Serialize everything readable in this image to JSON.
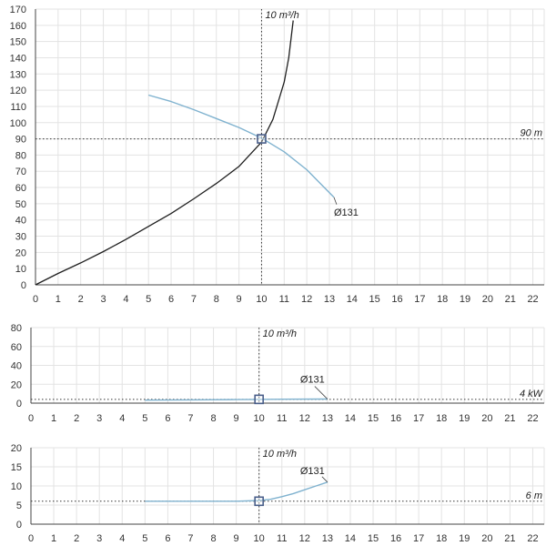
{
  "colors": {
    "system_curve": "#1f1f1f",
    "pump_curve": "#7fb2cf",
    "grid": "#e3e3e3",
    "axis": "#444444",
    "marker": "#4a5f8a",
    "guide": "#333333"
  },
  "chart_data": [
    {
      "type": "line",
      "x_ticks": [
        0,
        1,
        2,
        3,
        4,
        5,
        6,
        7,
        8,
        9,
        10,
        11,
        12,
        13,
        14,
        15,
        16,
        17,
        18,
        19,
        20,
        21,
        22
      ],
      "y_ticks": [
        0,
        10,
        20,
        30,
        40,
        50,
        60,
        70,
        80,
        90,
        100,
        110,
        120,
        130,
        140,
        150,
        160,
        170
      ],
      "xlim": [
        0,
        22.5
      ],
      "ylim": [
        0,
        170
      ],
      "grid": true,
      "series": [
        {
          "name": "",
          "color_key": "system_curve",
          "x": [
            0,
            1,
            2,
            3,
            4,
            5,
            6,
            7,
            8,
            9,
            10,
            10.5,
            11,
            11.2,
            11.4
          ],
          "y": [
            0,
            7,
            13.5,
            20.5,
            28,
            36,
            44,
            53,
            62.5,
            73,
            88,
            102,
            125,
            140,
            163
          ]
        },
        {
          "name": "Ø131",
          "color_key": "pump_curve",
          "x": [
            5,
            6,
            7,
            8,
            9,
            10,
            11,
            12,
            13.2
          ],
          "y": [
            117,
            113,
            108,
            102.5,
            97,
            90.5,
            82,
            71,
            54
          ]
        }
      ],
      "series_label": {
        "text": "Ø131",
        "x": 13.2,
        "y": 54
      },
      "vertical_guide": {
        "x": 10,
        "label": "10 m³/h"
      },
      "horizontal_guide": {
        "y": 90,
        "label": "90 m"
      },
      "operating_point": {
        "x": 10,
        "y": 90
      }
    },
    {
      "type": "line",
      "x_ticks": [
        0,
        1,
        2,
        3,
        4,
        5,
        6,
        7,
        8,
        9,
        10,
        11,
        12,
        13,
        14,
        15,
        16,
        17,
        18,
        19,
        20,
        21,
        22
      ],
      "y_ticks": [
        0,
        20,
        40,
        60,
        80
      ],
      "xlim": [
        0,
        22.5
      ],
      "ylim": [
        0,
        80
      ],
      "grid": true,
      "series": [
        {
          "name": "Ø131",
          "color_key": "pump_curve",
          "x": [
            5,
            7,
            9,
            10,
            11,
            13
          ],
          "y": [
            3.2,
            3.5,
            3.8,
            4,
            4.1,
            4.3
          ]
        }
      ],
      "series_label": {
        "text": "Ø131",
        "x": 13,
        "y": 4.3
      },
      "vertical_guide": {
        "x": 10,
        "label": "10 m³/h"
      },
      "horizontal_guide": {
        "y": 4,
        "label": "4 kW"
      },
      "operating_point": {
        "x": 10,
        "y": 4
      }
    },
    {
      "type": "line",
      "x_ticks": [
        0,
        1,
        2,
        3,
        4,
        5,
        6,
        7,
        8,
        9,
        10,
        11,
        12,
        13,
        14,
        15,
        16,
        17,
        18,
        19,
        20,
        21,
        22
      ],
      "y_ticks": [
        0,
        5,
        10,
        15,
        20
      ],
      "xlim": [
        0,
        22.5
      ],
      "ylim": [
        0,
        20
      ],
      "grid": true,
      "series": [
        {
          "name": "Ø131",
          "color_key": "pump_curve",
          "x": [
            5,
            7,
            9,
            10,
            10.5,
            11,
            11.5,
            12,
            12.5,
            13
          ],
          "y": [
            6,
            6,
            6,
            6.2,
            6.5,
            7.2,
            8,
            9,
            10,
            11
          ]
        }
      ],
      "series_label": {
        "text": "Ø131",
        "x": 13,
        "y": 11
      },
      "vertical_guide": {
        "x": 10,
        "label": "10 m³/h"
      },
      "horizontal_guide": {
        "y": 6,
        "label": "6 m"
      },
      "operating_point": {
        "x": 10,
        "y": 6
      }
    }
  ]
}
